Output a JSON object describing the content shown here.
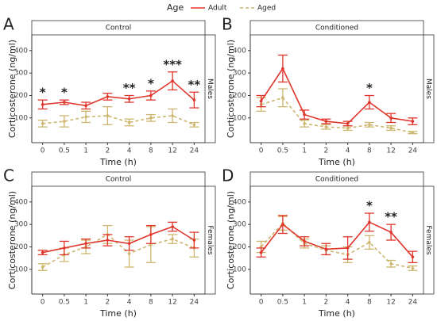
{
  "legend": {
    "title": "Age"
  },
  "chart_data": [
    {
      "type": "line",
      "panel": "A",
      "title": "Control",
      "facet": "Males",
      "x_label": "Time (h)",
      "y_label": "Corticosterone (ng/ml)",
      "categories": [
        "0",
        "0.5",
        "1",
        "2",
        "4",
        "8",
        "12",
        "24"
      ],
      "ylim": [
        -10,
        470
      ],
      "yticks": [
        100,
        200,
        300,
        400
      ],
      "series": [
        {
          "name": "Adult",
          "color": "#e0352b",
          "line_style": "solid",
          "values": [
            160,
            170,
            155,
            195,
            185,
            200,
            265,
            180
          ],
          "errors": [
            20,
            10,
            15,
            15,
            15,
            20,
            40,
            35
          ]
        },
        {
          "name": "Aged",
          "color": "#cdb66e",
          "line_style": "dashed",
          "values": [
            75,
            85,
            105,
            110,
            80,
            100,
            110,
            70
          ],
          "errors": [
            15,
            25,
            25,
            40,
            15,
            15,
            30,
            10
          ]
        }
      ],
      "annotations": [
        {
          "text": "*",
          "category": "0"
        },
        {
          "text": "*",
          "category": "0.5"
        },
        {
          "text": "**",
          "category": "4"
        },
        {
          "text": "*",
          "category": "8"
        },
        {
          "text": "***",
          "category": "12"
        },
        {
          "text": "**",
          "category": "24"
        }
      ]
    },
    {
      "type": "line",
      "panel": "B",
      "title": "Conditioned",
      "facet": "Males",
      "x_label": "Time (h)",
      "y_label": "Corticosterone (ng/ml)",
      "categories": [
        "0",
        "0.5",
        "1",
        "2",
        "4",
        "8",
        "12",
        "24"
      ],
      "ylim": [
        -10,
        470
      ],
      "yticks": [
        100,
        200,
        300,
        400
      ],
      "series": [
        {
          "name": "Adult",
          "color": "#e0352b",
          "line_style": "solid",
          "values": [
            175,
            320,
            115,
            85,
            75,
            170,
            100,
            85
          ],
          "errors": [
            25,
            60,
            20,
            10,
            10,
            30,
            20,
            15
          ]
        },
        {
          "name": "Aged",
          "color": "#cdb66e",
          "line_style": "dashed",
          "values": [
            160,
            190,
            75,
            60,
            55,
            70,
            55,
            35
          ],
          "errors": [
            30,
            40,
            15,
            10,
            10,
            10,
            10,
            5
          ]
        }
      ],
      "annotations": [
        {
          "text": "*",
          "category": "8"
        }
      ]
    },
    {
      "type": "line",
      "panel": "C",
      "title": "Control",
      "facet": "Females",
      "x_label": "Time (h)",
      "y_label": "Corticosterone (ng/ml)",
      "categories": [
        "0",
        "0.5",
        "1",
        "2",
        "4",
        "8",
        "12",
        "24"
      ],
      "ylim": [
        -10,
        470
      ],
      "yticks": [
        100,
        200,
        300,
        400
      ],
      "series": [
        {
          "name": "Adult",
          "color": "#e0352b",
          "line_style": "solid",
          "values": [
            175,
            195,
            215,
            230,
            215,
            255,
            290,
            230
          ],
          "errors": [
            10,
            30,
            20,
            25,
            30,
            40,
            20,
            35
          ]
        },
        {
          "name": "Aged",
          "color": "#cdb66e",
          "line_style": "dashed",
          "values": [
            110,
            165,
            200,
            255,
            170,
            210,
            235,
            195
          ],
          "errors": [
            15,
            30,
            30,
            40,
            60,
            80,
            20,
            40
          ]
        }
      ],
      "annotations": []
    },
    {
      "type": "line",
      "panel": "D",
      "title": "Conditioned",
      "facet": "Females",
      "x_label": "Time (h)",
      "y_label": "Corticosterone (ng/ml)",
      "categories": [
        "0",
        "0.5",
        "1",
        "2",
        "4",
        "8",
        "12",
        "24"
      ],
      "ylim": [
        -10,
        470
      ],
      "yticks": [
        100,
        200,
        300,
        400
      ],
      "series": [
        {
          "name": "Adult",
          "color": "#e0352b",
          "line_style": "solid",
          "values": [
            175,
            300,
            225,
            190,
            195,
            310,
            265,
            155
          ],
          "errors": [
            20,
            40,
            20,
            25,
            50,
            40,
            35,
            25
          ]
        },
        {
          "name": "Aged",
          "color": "#cdb66e",
          "line_style": "dashed",
          "values": [
            200,
            305,
            215,
            185,
            165,
            220,
            125,
            105
          ],
          "errors": [
            25,
            30,
            20,
            20,
            35,
            30,
            15,
            10
          ]
        }
      ],
      "annotations": [
        {
          "text": "*",
          "category": "8"
        },
        {
          "text": "**",
          "category": "12"
        }
      ]
    }
  ]
}
